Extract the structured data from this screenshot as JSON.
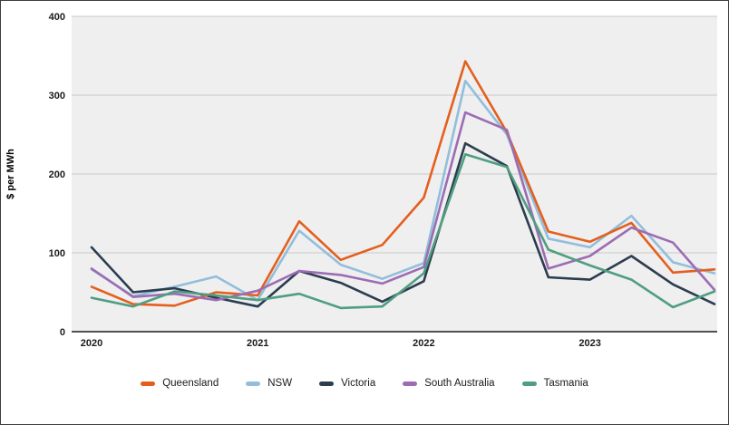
{
  "chart_data": {
    "type": "line",
    "title": "",
    "y_axis_title": "$ per MWh",
    "x_axis_title": "",
    "x_categories": [
      "2020 Q1",
      "2020 Q2",
      "2020 Q3",
      "2020 Q4",
      "2021 Q1",
      "2021 Q2",
      "2021 Q3",
      "2021 Q4",
      "2022 Q1",
      "2022 Q2",
      "2022 Q3",
      "2022 Q4",
      "2023 Q1",
      "2023 Q2",
      "2023 Q3",
      "2023 Q4"
    ],
    "x_tick_labels": [
      "2020",
      "2021",
      "2022",
      "2023"
    ],
    "x_tick_at_category_index": [
      0,
      4,
      8,
      12
    ],
    "y_ticks": [
      0,
      100,
      200,
      300,
      400
    ],
    "ylim": [
      0,
      400
    ],
    "grid": true,
    "legend_position": "bottom",
    "plot_background": "#efefef",
    "gridline_color": "#c9c9c9",
    "zero_axis_color": "#1a1a1a",
    "series": [
      {
        "name": "Queensland",
        "color": "#e45f1e",
        "values": [
          57,
          35,
          33,
          50,
          46,
          140,
          91,
          110,
          170,
          343,
          253,
          127,
          114,
          138,
          75,
          79
        ]
      },
      {
        "name": "NSW",
        "color": "#92bedb",
        "values": [
          79,
          45,
          57,
          70,
          40,
          128,
          85,
          67,
          87,
          318,
          250,
          118,
          107,
          147,
          88,
          74
        ]
      },
      {
        "name": "Victoria",
        "color": "#2b3d4f",
        "values": [
          107,
          50,
          55,
          43,
          32,
          77,
          62,
          38,
          64,
          239,
          210,
          69,
          66,
          96,
          60,
          35
        ]
      },
      {
        "name": "South Australia",
        "color": "#9c6cb4",
        "values": [
          80,
          44,
          48,
          40,
          52,
          77,
          72,
          61,
          82,
          278,
          256,
          80,
          96,
          132,
          113,
          53
        ]
      },
      {
        "name": "Tasmania",
        "color": "#4f9e82",
        "values": [
          43,
          32,
          51,
          46,
          40,
          48,
          30,
          32,
          74,
          225,
          209,
          104,
          84,
          66,
          31,
          51
        ]
      }
    ],
    "draw_order": [
      "NSW",
      "Victoria",
      "Queensland",
      "South Australia",
      "Tasmania"
    ]
  }
}
